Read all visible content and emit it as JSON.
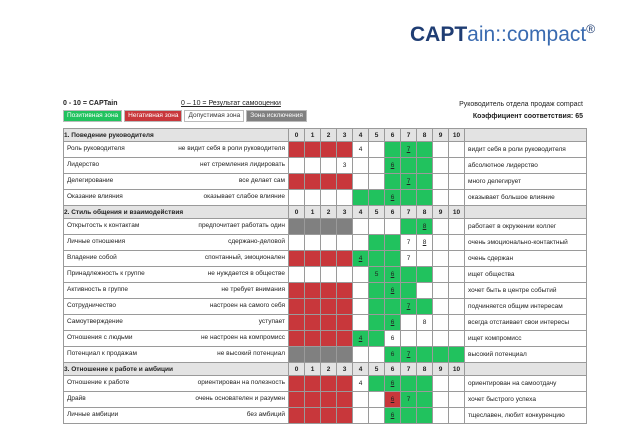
{
  "logo": {
    "bold": "CAPT",
    "rest": "ain::compact",
    "reg": "®"
  },
  "header": {
    "scale_captain": "0 - 10 = CAPTain",
    "scale_self": "0 – 10 = Результат самооценки",
    "profile_title": "Руководитель отдела продаж compact",
    "coefficient": "Коэффициент соответствия: 65"
  },
  "legend": {
    "positive": "Позитивная зона",
    "negative": "Негативная зона",
    "acceptable": "Допустимая зона",
    "exclusion": "Зона исключения"
  },
  "columns": [
    "0",
    "1",
    "2",
    "3",
    "4",
    "5",
    "6",
    "7",
    "8",
    "9",
    "10"
  ],
  "colors": {
    "negative": "#c8373b",
    "positive": "#21c25e",
    "exclusion": "#808080"
  },
  "sections": [
    {
      "title": "1. Поведение руководителя",
      "rows": [
        {
          "name": "Роль руководителя",
          "left": "не видит себя в роли руководителя",
          "right": "видит себя в роли руководителя",
          "zones": "NNNNWWGGGWW",
          "captain": 4,
          "self": 7
        },
        {
          "name": "Лидерство",
          "left": "нет стремления лидировать",
          "right": "абсолютное лидерство",
          "zones": "WWWWWWGGGWW",
          "captain": 3,
          "self": 6
        },
        {
          "name": "Делегирование",
          "left": "все делает сам",
          "right": "много делегирует",
          "zones": "NNNNWWGGGWW",
          "captain": null,
          "self": 7
        },
        {
          "name": "Оказание влияния",
          "left": "оказывает слабое влияние",
          "right": "оказывает большое влияние",
          "zones": "WWWWGGGGGWW",
          "captain": null,
          "self": 6
        }
      ]
    },
    {
      "title": "2. Стиль общения и взаимодействия",
      "rows": [
        {
          "name": "Открытость к контактам",
          "left": "предпочитает работать один",
          "right": "работает в окружении коллег",
          "zones": "XXXXWWWGGWW",
          "captain": null,
          "self": 8
        },
        {
          "name": "Личные отношения",
          "left": "сдержано-деловой",
          "right": "очень эмоционально-контактный",
          "zones": "WWWWWGGWWWW",
          "captain": 7,
          "self": 8
        },
        {
          "name": "Владение собой",
          "left": "спонтанный, эмоционален",
          "right": "очень сдержан",
          "zones": "NNNNGGGWWWW",
          "captain": 7,
          "self": 4
        },
        {
          "name": "Принадлежность к группе",
          "left": "не нуждается в обществе",
          "right": "ищет общества",
          "zones": "WWWWWGGGGWW",
          "captain": 5,
          "self": 6
        },
        {
          "name": "Активность в группе",
          "left": "не требует внимания",
          "right": "хочет быть в центре событий",
          "zones": "NNNNWGGGWWW",
          "captain": null,
          "self": 6
        },
        {
          "name": "Сотрудничество",
          "left": "настроен на самого себя",
          "right": "подчиняется общим интересам",
          "zones": "NNNNWGGGGWW",
          "captain": null,
          "self": 7
        },
        {
          "name": "Самоутверждение",
          "left": "уступает",
          "right": "всегда отстаивает свои интересы",
          "zones": "NNNNWGGWWWW",
          "captain": 8,
          "self": 6
        },
        {
          "name": "Отношения с людьми",
          "left": "не настроен на компромисс",
          "right": "ищет компромисс",
          "zones": "NNNNGGWWWWW",
          "captain": 6,
          "self": 4
        },
        {
          "name": "Потенциал к продажам",
          "left": "не высокий потенциал",
          "right": "высокий потенциал",
          "zones": "XXXXWWGGGGG",
          "captain": 6,
          "self": 7
        }
      ]
    },
    {
      "title": "3. Отношение к работе и амбиции",
      "rows": [
        {
          "name": "Отношение к работе",
          "left": "ориентирован на полезность",
          "right": "ориентирован на самоотдачу",
          "zones": "NNNNWGGGGWW",
          "captain": 4,
          "self": 6
        },
        {
          "name": "Драйв",
          "left": "очень основателен и разумен",
          "right": "хочет быстрого успеха",
          "zones": "NNNNWWNGGWW",
          "captain": 7,
          "self": 6
        },
        {
          "name": "Личные амбиции",
          "left": "без амбиций",
          "right": "тщеславен, любит конкуренцию",
          "zones": "NNNNWWGGGWW",
          "captain": null,
          "self": 6
        }
      ]
    }
  ]
}
